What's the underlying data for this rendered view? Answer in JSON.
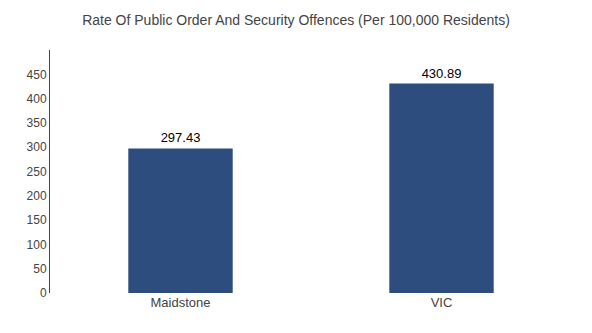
{
  "chart_data": {
    "type": "bar",
    "title": "Rate Of Public Order And Security Offences (Per 100,000 Residents)",
    "categories": [
      "Maidstone",
      "VIC"
    ],
    "values": [
      297.43,
      430.89
    ],
    "color": "#2d4d7f",
    "ylim": [
      0,
      500
    ],
    "yticks": [
      0,
      50,
      100,
      150,
      200,
      250,
      300,
      350,
      400,
      450
    ],
    "grid": false,
    "data_labels": true
  }
}
